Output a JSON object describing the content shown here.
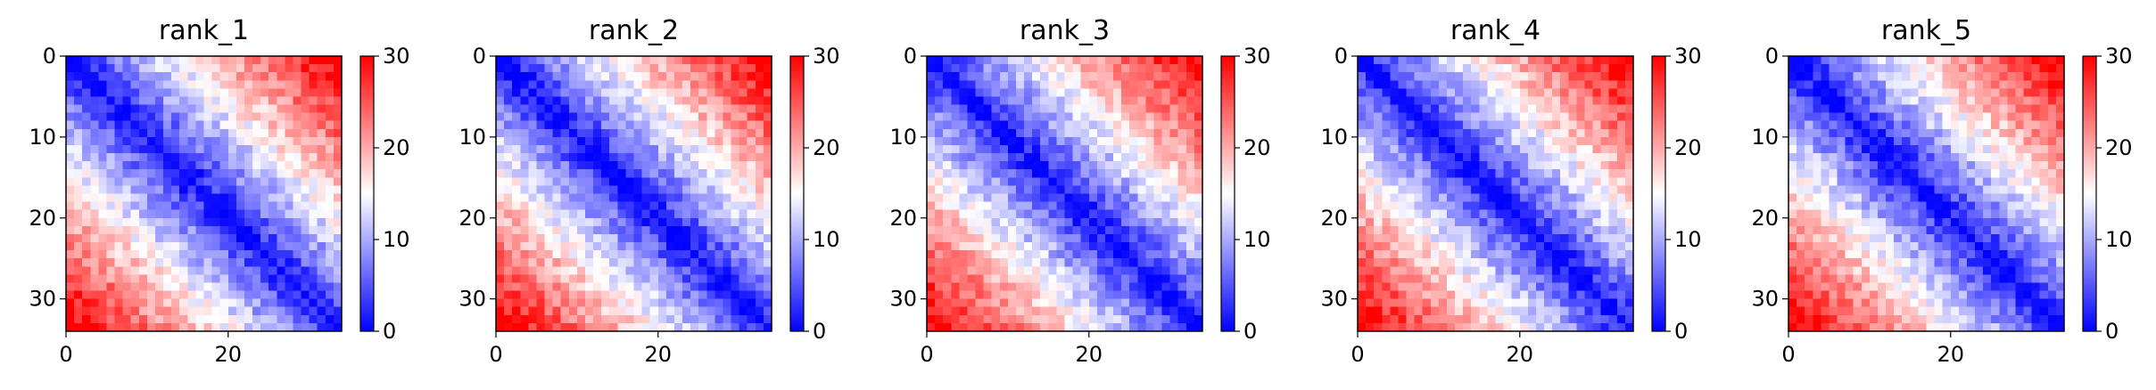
{
  "chart_data": [
    {
      "type": "heatmap",
      "title": "rank_1",
      "matrix_size": 34,
      "x_ticks": [
        0,
        20
      ],
      "y_ticks": [
        0,
        10,
        20,
        30
      ],
      "colorbar_ticks": [
        0,
        10,
        20,
        30
      ],
      "value_range": [
        0,
        30
      ],
      "colormap": "bwr",
      "pattern": "distance matrix: ~0 on the diagonal, increasing away from it; far corners approx 25-30",
      "seed": 11
    },
    {
      "type": "heatmap",
      "title": "rank_2",
      "matrix_size": 34,
      "x_ticks": [
        0,
        20
      ],
      "y_ticks": [
        0,
        10,
        20,
        30
      ],
      "colorbar_ticks": [
        0,
        10,
        20,
        30
      ],
      "value_range": [
        0,
        30
      ],
      "colormap": "bwr",
      "pattern": "distance matrix: ~0 on the diagonal, increasing away from it; far corners approx 25-30",
      "seed": 23
    },
    {
      "type": "heatmap",
      "title": "rank_3",
      "matrix_size": 34,
      "x_ticks": [
        0,
        20
      ],
      "y_ticks": [
        0,
        10,
        20,
        30
      ],
      "colorbar_ticks": [
        0,
        10,
        20,
        30
      ],
      "value_range": [
        0,
        30
      ],
      "colormap": "bwr",
      "pattern": "distance matrix: ~0 on the diagonal, increasing away from it; far corners approx 25-30",
      "seed": 37
    },
    {
      "type": "heatmap",
      "title": "rank_4",
      "matrix_size": 34,
      "x_ticks": [
        0,
        20
      ],
      "y_ticks": [
        0,
        10,
        20,
        30
      ],
      "colorbar_ticks": [
        0,
        10,
        20,
        30
      ],
      "value_range": [
        0,
        30
      ],
      "colormap": "bwr",
      "pattern": "distance matrix: ~0 on the diagonal, increasing away from it; far corners approx 25-30",
      "seed": 41
    },
    {
      "type": "heatmap",
      "title": "rank_5",
      "matrix_size": 34,
      "x_ticks": [
        0,
        20
      ],
      "y_ticks": [
        0,
        10,
        20,
        30
      ],
      "colorbar_ticks": [
        0,
        10,
        20,
        30
      ],
      "value_range": [
        0,
        30
      ],
      "colormap": "bwr",
      "pattern": "distance matrix: ~0 on the diagonal, increasing away from it; far corners approx 25-30",
      "seed": 53
    }
  ],
  "colors": {
    "low": "#0000ff",
    "mid": "#ffffff",
    "high": "#ff0000",
    "axis": "#000000"
  }
}
